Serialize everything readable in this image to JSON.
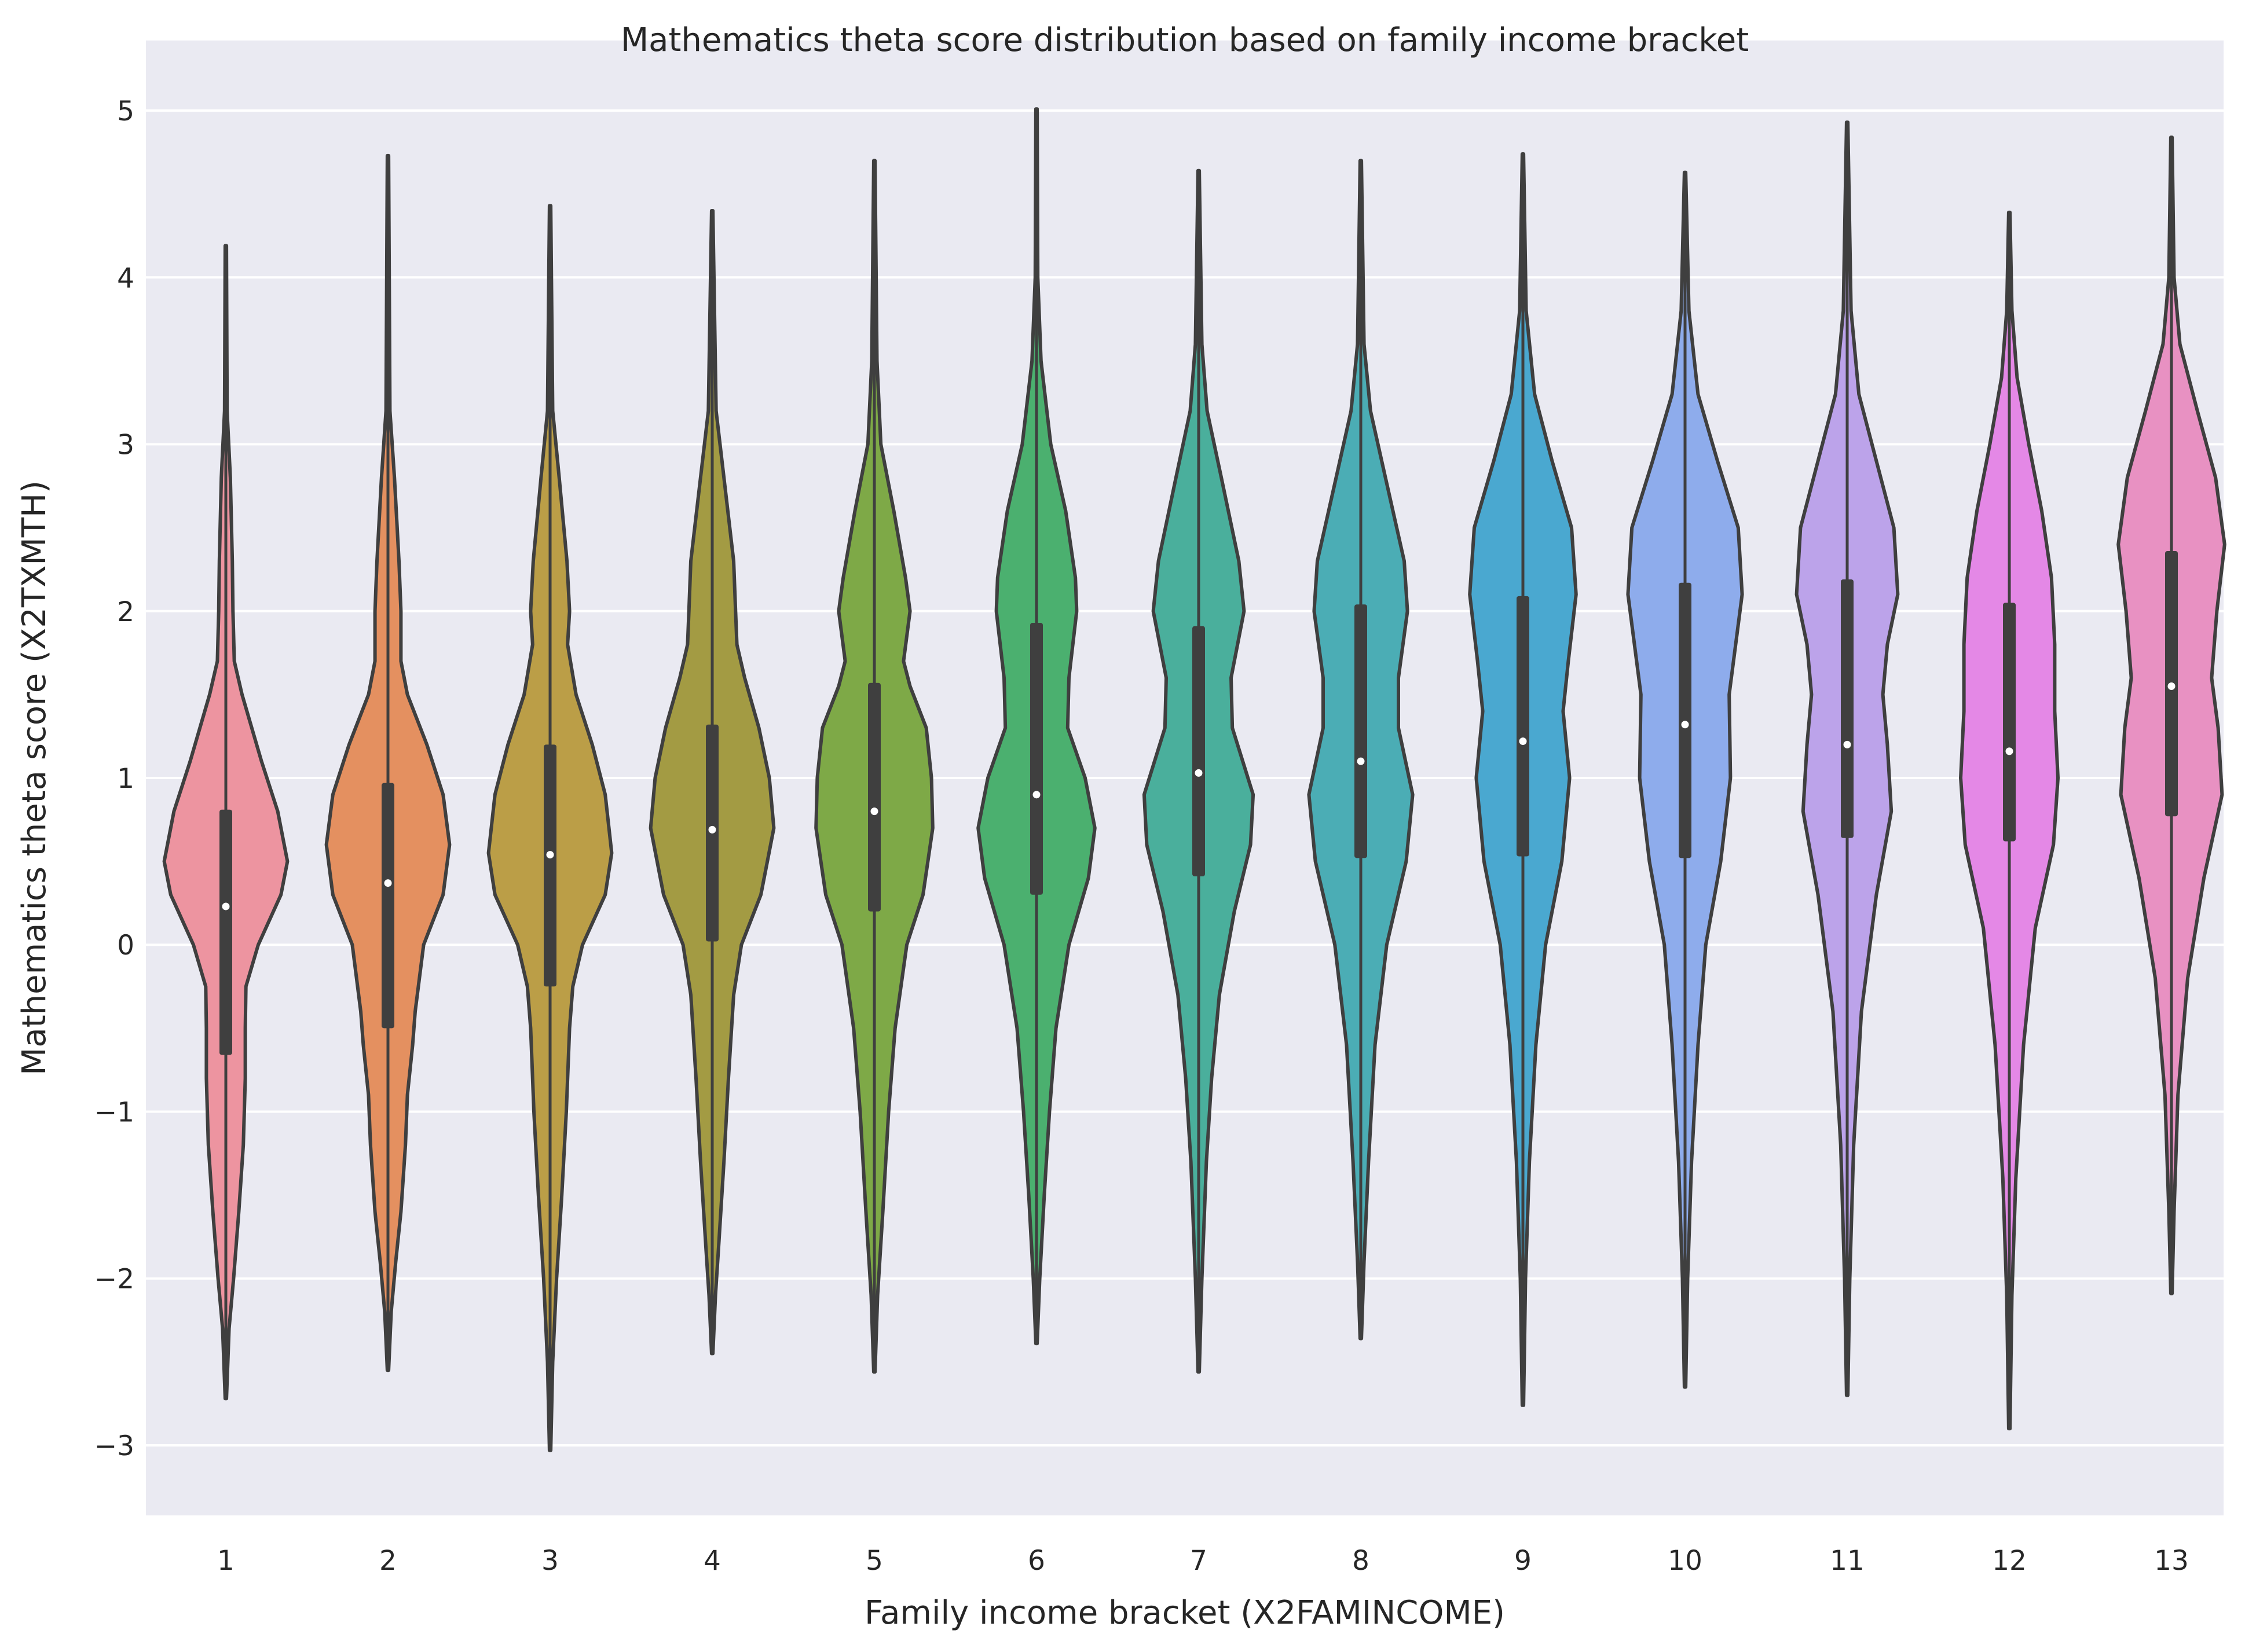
{
  "chart_data": {
    "type": "violin",
    "title": "Mathematics theta score distribution based on family income bracket",
    "xlabel": "Family income bracket (X2FAMINCOME)",
    "ylabel": "Mathematics theta score (X2TXMTH)",
    "categories": [
      "1",
      "2",
      "3",
      "4",
      "5",
      "6",
      "7",
      "8",
      "9",
      "10",
      "11",
      "12",
      "13"
    ],
    "ylim": [
      -3.42,
      5.42
    ],
    "yticks": [
      5,
      4,
      3,
      2,
      1,
      0,
      -1,
      -2,
      -3
    ],
    "ytick_labels": [
      "5",
      "4",
      "3",
      "2",
      "1",
      "0",
      "−1",
      "−2",
      "−3"
    ],
    "grid": true,
    "background_color": "#eaeaf2",
    "violins": [
      {
        "category": "1",
        "color": "#ed94a0",
        "min": -2.72,
        "max": 4.19,
        "q1": -0.66,
        "median": 0.23,
        "q3": 0.81,
        "density": [
          [
            -2.72,
            0.01
          ],
          [
            -2.3,
            0.05
          ],
          [
            -2.0,
            0.12
          ],
          [
            -1.6,
            0.2
          ],
          [
            -1.2,
            0.27
          ],
          [
            -0.8,
            0.3
          ],
          [
            -0.5,
            0.3
          ],
          [
            -0.25,
            0.31
          ],
          [
            0.0,
            0.5
          ],
          [
            0.3,
            0.85
          ],
          [
            0.5,
            0.95
          ],
          [
            0.8,
            0.8
          ],
          [
            1.1,
            0.55
          ],
          [
            1.5,
            0.25
          ],
          [
            1.7,
            0.13
          ],
          [
            2.0,
            0.11
          ],
          [
            2.3,
            0.1
          ],
          [
            2.8,
            0.07
          ],
          [
            3.2,
            0.02
          ],
          [
            4.19,
            0.01
          ]
        ]
      },
      {
        "category": "2",
        "color": "#e49060",
        "min": -2.55,
        "max": 4.73,
        "q1": -0.5,
        "median": 0.37,
        "q3": 0.97,
        "density": [
          [
            -2.55,
            0.01
          ],
          [
            -2.2,
            0.05
          ],
          [
            -1.9,
            0.12
          ],
          [
            -1.6,
            0.2
          ],
          [
            -1.2,
            0.27
          ],
          [
            -0.9,
            0.3
          ],
          [
            -0.6,
            0.38
          ],
          [
            -0.4,
            0.42
          ],
          [
            0.0,
            0.55
          ],
          [
            0.3,
            0.85
          ],
          [
            0.6,
            0.95
          ],
          [
            0.9,
            0.85
          ],
          [
            1.2,
            0.6
          ],
          [
            1.5,
            0.3
          ],
          [
            1.7,
            0.2
          ],
          [
            2.0,
            0.2
          ],
          [
            2.3,
            0.17
          ],
          [
            2.8,
            0.1
          ],
          [
            3.2,
            0.03
          ],
          [
            4.73,
            0.01
          ]
        ]
      },
      {
        "category": "3",
        "color": "#bb9e47",
        "min": -3.03,
        "max": 4.43,
        "q1": -0.25,
        "median": 0.54,
        "q3": 1.2,
        "density": [
          [
            -3.03,
            0.01
          ],
          [
            -2.5,
            0.04
          ],
          [
            -2.0,
            0.1
          ],
          [
            -1.5,
            0.18
          ],
          [
            -1.0,
            0.25
          ],
          [
            -0.5,
            0.3
          ],
          [
            -0.25,
            0.35
          ],
          [
            0.0,
            0.5
          ],
          [
            0.3,
            0.85
          ],
          [
            0.55,
            0.95
          ],
          [
            0.9,
            0.85
          ],
          [
            1.2,
            0.65
          ],
          [
            1.5,
            0.4
          ],
          [
            1.8,
            0.27
          ],
          [
            2.0,
            0.3
          ],
          [
            2.3,
            0.26
          ],
          [
            2.8,
            0.14
          ],
          [
            3.2,
            0.04
          ],
          [
            4.43,
            0.01
          ]
        ]
      },
      {
        "category": "4",
        "color": "#a39b43",
        "min": -2.45,
        "max": 4.4,
        "q1": 0.02,
        "median": 0.69,
        "q3": 1.32,
        "density": [
          [
            -2.45,
            0.01
          ],
          [
            -2.1,
            0.05
          ],
          [
            -1.8,
            0.1
          ],
          [
            -1.3,
            0.18
          ],
          [
            -0.8,
            0.25
          ],
          [
            -0.3,
            0.33
          ],
          [
            0.0,
            0.45
          ],
          [
            0.3,
            0.75
          ],
          [
            0.7,
            0.95
          ],
          [
            1.0,
            0.88
          ],
          [
            1.3,
            0.72
          ],
          [
            1.6,
            0.5
          ],
          [
            1.8,
            0.38
          ],
          [
            2.0,
            0.36
          ],
          [
            2.3,
            0.33
          ],
          [
            2.8,
            0.18
          ],
          [
            3.2,
            0.06
          ],
          [
            4.4,
            0.01
          ]
        ]
      },
      {
        "category": "5",
        "color": "#7ea947",
        "min": -2.56,
        "max": 4.7,
        "q1": 0.2,
        "median": 0.8,
        "q3": 1.57,
        "density": [
          [
            -2.56,
            0.01
          ],
          [
            -2.1,
            0.05
          ],
          [
            -1.6,
            0.13
          ],
          [
            -1.0,
            0.22
          ],
          [
            -0.5,
            0.32
          ],
          [
            0.0,
            0.5
          ],
          [
            0.3,
            0.75
          ],
          [
            0.7,
            0.9
          ],
          [
            1.0,
            0.88
          ],
          [
            1.3,
            0.8
          ],
          [
            1.55,
            0.55
          ],
          [
            1.7,
            0.45
          ],
          [
            2.0,
            0.55
          ],
          [
            2.2,
            0.48
          ],
          [
            2.6,
            0.3
          ],
          [
            3.0,
            0.1
          ],
          [
            3.5,
            0.04
          ],
          [
            4.7,
            0.01
          ]
        ]
      },
      {
        "category": "6",
        "color": "#4bb06f",
        "min": -2.39,
        "max": 5.01,
        "q1": 0.3,
        "median": 0.9,
        "q3": 1.93,
        "density": [
          [
            -2.39,
            0.01
          ],
          [
            -2.0,
            0.05
          ],
          [
            -1.5,
            0.12
          ],
          [
            -1.0,
            0.2
          ],
          [
            -0.5,
            0.3
          ],
          [
            0.0,
            0.5
          ],
          [
            0.4,
            0.8
          ],
          [
            0.7,
            0.9
          ],
          [
            1.0,
            0.75
          ],
          [
            1.3,
            0.48
          ],
          [
            1.6,
            0.5
          ],
          [
            2.0,
            0.62
          ],
          [
            2.2,
            0.6
          ],
          [
            2.6,
            0.45
          ],
          [
            3.0,
            0.22
          ],
          [
            3.5,
            0.07
          ],
          [
            4.0,
            0.02
          ],
          [
            5.01,
            0.01
          ]
        ]
      },
      {
        "category": "7",
        "color": "#4aaf9c",
        "min": -2.56,
        "max": 4.64,
        "q1": 0.41,
        "median": 1.03,
        "q3": 1.91,
        "density": [
          [
            -2.56,
            0.01
          ],
          [
            -2.0,
            0.05
          ],
          [
            -1.3,
            0.12
          ],
          [
            -0.8,
            0.2
          ],
          [
            -0.3,
            0.32
          ],
          [
            0.2,
            0.55
          ],
          [
            0.6,
            0.8
          ],
          [
            0.9,
            0.84
          ],
          [
            1.3,
            0.52
          ],
          [
            1.6,
            0.5
          ],
          [
            2.0,
            0.7
          ],
          [
            2.3,
            0.62
          ],
          [
            2.8,
            0.35
          ],
          [
            3.2,
            0.13
          ],
          [
            3.6,
            0.05
          ],
          [
            4.64,
            0.01
          ]
        ]
      },
      {
        "category": "8",
        "color": "#4badb5",
        "min": -2.36,
        "max": 4.7,
        "q1": 0.52,
        "median": 1.1,
        "q3": 2.04,
        "density": [
          [
            -2.36,
            0.01
          ],
          [
            -1.9,
            0.05
          ],
          [
            -1.3,
            0.12
          ],
          [
            -0.6,
            0.22
          ],
          [
            0.0,
            0.4
          ],
          [
            0.5,
            0.7
          ],
          [
            0.9,
            0.8
          ],
          [
            1.3,
            0.58
          ],
          [
            1.6,
            0.58
          ],
          [
            2.0,
            0.72
          ],
          [
            2.3,
            0.67
          ],
          [
            2.8,
            0.38
          ],
          [
            3.2,
            0.15
          ],
          [
            3.6,
            0.05
          ],
          [
            4.7,
            0.01
          ]
        ]
      },
      {
        "category": "9",
        "color": "#4aa8d0",
        "min": -2.76,
        "max": 4.74,
        "q1": 0.53,
        "median": 1.22,
        "q3": 2.09,
        "density": [
          [
            -2.76,
            0.01
          ],
          [
            -2.0,
            0.04
          ],
          [
            -1.3,
            0.1
          ],
          [
            -0.6,
            0.2
          ],
          [
            0.0,
            0.35
          ],
          [
            0.5,
            0.6
          ],
          [
            1.0,
            0.72
          ],
          [
            1.4,
            0.62
          ],
          [
            1.7,
            0.7
          ],
          [
            2.1,
            0.82
          ],
          [
            2.5,
            0.75
          ],
          [
            2.9,
            0.45
          ],
          [
            3.3,
            0.18
          ],
          [
            3.8,
            0.05
          ],
          [
            4.74,
            0.01
          ]
        ]
      },
      {
        "category": "10",
        "color": "#8eacec",
        "min": -2.65,
        "max": 4.63,
        "q1": 0.52,
        "median": 1.32,
        "q3": 2.17,
        "density": [
          [
            -2.65,
            0.01
          ],
          [
            -2.0,
            0.04
          ],
          [
            -1.3,
            0.1
          ],
          [
            -0.6,
            0.2
          ],
          [
            0.0,
            0.32
          ],
          [
            0.5,
            0.55
          ],
          [
            1.0,
            0.7
          ],
          [
            1.5,
            0.68
          ],
          [
            1.8,
            0.78
          ],
          [
            2.1,
            0.88
          ],
          [
            2.5,
            0.82
          ],
          [
            2.9,
            0.5
          ],
          [
            3.3,
            0.2
          ],
          [
            3.8,
            0.06
          ],
          [
            4.63,
            0.01
          ]
        ]
      },
      {
        "category": "11",
        "color": "#bca3ea",
        "min": -2.7,
        "max": 4.93,
        "q1": 0.64,
        "median": 1.2,
        "q3": 2.19,
        "density": [
          [
            -2.7,
            0.01
          ],
          [
            -2.0,
            0.04
          ],
          [
            -1.2,
            0.1
          ],
          [
            -0.4,
            0.22
          ],
          [
            0.3,
            0.45
          ],
          [
            0.8,
            0.68
          ],
          [
            1.2,
            0.62
          ],
          [
            1.5,
            0.55
          ],
          [
            1.8,
            0.62
          ],
          [
            2.1,
            0.78
          ],
          [
            2.5,
            0.72
          ],
          [
            2.9,
            0.45
          ],
          [
            3.3,
            0.18
          ],
          [
            3.8,
            0.06
          ],
          [
            4.93,
            0.01
          ]
        ]
      },
      {
        "category": "12",
        "color": "#e488e6",
        "min": -2.9,
        "max": 4.39,
        "q1": 0.62,
        "median": 1.16,
        "q3": 2.05,
        "density": [
          [
            -2.9,
            0.01
          ],
          [
            -2.1,
            0.04
          ],
          [
            -1.4,
            0.1
          ],
          [
            -0.6,
            0.22
          ],
          [
            0.1,
            0.4
          ],
          [
            0.6,
            0.68
          ],
          [
            1.0,
            0.75
          ],
          [
            1.4,
            0.7
          ],
          [
            1.8,
            0.7
          ],
          [
            2.2,
            0.65
          ],
          [
            2.6,
            0.5
          ],
          [
            3.0,
            0.3
          ],
          [
            3.4,
            0.12
          ],
          [
            3.8,
            0.04
          ],
          [
            4.39,
            0.01
          ]
        ]
      },
      {
        "category": "13",
        "color": "#e891c2",
        "min": -2.09,
        "max": 4.84,
        "q1": 0.77,
        "median": 1.55,
        "q3": 2.36,
        "density": [
          [
            -2.09,
            0.01
          ],
          [
            -1.6,
            0.04
          ],
          [
            -0.9,
            0.1
          ],
          [
            -0.2,
            0.25
          ],
          [
            0.4,
            0.5
          ],
          [
            0.9,
            0.78
          ],
          [
            1.3,
            0.72
          ],
          [
            1.6,
            0.62
          ],
          [
            2.0,
            0.7
          ],
          [
            2.4,
            0.82
          ],
          [
            2.8,
            0.68
          ],
          [
            3.2,
            0.4
          ],
          [
            3.6,
            0.13
          ],
          [
            4.0,
            0.04
          ],
          [
            4.84,
            0.01
          ]
        ]
      }
    ]
  }
}
